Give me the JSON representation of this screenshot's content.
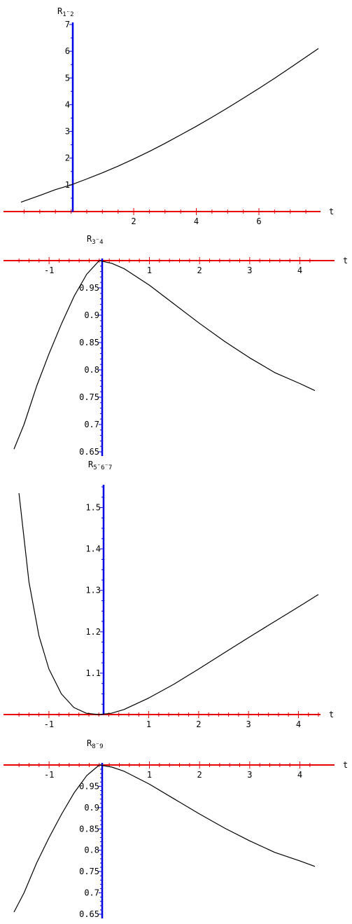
{
  "chart_data": [
    {
      "type": "line",
      "title": "R",
      "title_subscript": "1¨2",
      "xlabel": "t",
      "xlim": [
        -1.6,
        7.9
      ],
      "ylim": [
        0,
        7
      ],
      "x_ticks": [
        2,
        4,
        6
      ],
      "y_ticks": [
        1,
        2,
        3,
        4,
        5,
        6,
        7
      ],
      "x_axis_color": "#e60000",
      "y_axis_color": "#0000e6",
      "series": [
        {
          "x": [
            -1.6,
            -1.0,
            -0.5,
            0,
            0.5,
            1,
            1.5,
            2,
            2.5,
            3,
            3.5,
            4,
            4.5,
            5,
            5.5,
            6,
            6.5,
            7,
            7.5,
            7.9
          ],
          "y": [
            0.35,
            0.6,
            0.82,
            1.0,
            1.22,
            1.45,
            1.7,
            1.97,
            2.25,
            2.55,
            2.87,
            3.19,
            3.53,
            3.88,
            4.24,
            4.61,
            4.99,
            5.38,
            5.78,
            6.1
          ]
        }
      ]
    },
    {
      "type": "line",
      "title": "R",
      "title_subscript": "3¨4",
      "xlabel": "t",
      "xlim": [
        -1.7,
        4.3
      ],
      "ylim": [
        0.65,
        1.0
      ],
      "x_ticks": [
        -1,
        1,
        2,
        3,
        4
      ],
      "y_ticks": [
        0.65,
        0.7,
        0.75,
        0.8,
        0.85,
        0.9,
        0.95
      ],
      "x_axis_color": "#e60000",
      "y_axis_color": "#0000e6",
      "series": [
        {
          "x": [
            -1.7,
            -1.5,
            -1.25,
            -1.0,
            -0.75,
            -0.5,
            -0.25,
            0,
            0.25,
            0.5,
            1,
            1.5,
            2,
            2.5,
            3,
            3.5,
            4,
            4.3
          ],
          "y": [
            0.655,
            0.7,
            0.77,
            0.83,
            0.885,
            0.935,
            0.975,
            1.0,
            0.995,
            0.985,
            0.955,
            0.92,
            0.885,
            0.852,
            0.822,
            0.795,
            0.775,
            0.762
          ]
        }
      ]
    },
    {
      "type": "line",
      "title": "R",
      "title_subscript": "5¨6¨7",
      "xlabel": "t",
      "xlim": [
        -1.7,
        4.4
      ],
      "ylim": [
        1.0,
        1.55
      ],
      "x_ticks": [
        -1,
        1,
        2,
        3,
        4
      ],
      "y_ticks": [
        1.1,
        1.2,
        1.3,
        1.4,
        1.5
      ],
      "x_axis_color": "#e60000",
      "y_axis_color": "#0000e6",
      "series": [
        {
          "x": [
            -1.6,
            -1.4,
            -1.2,
            -1.0,
            -0.75,
            -0.5,
            -0.25,
            0,
            0.25,
            0.5,
            1,
            1.5,
            2,
            2.5,
            3,
            3.5,
            4,
            4.4
          ],
          "y": [
            1.535,
            1.32,
            1.19,
            1.11,
            1.05,
            1.017,
            1.003,
            1.0,
            1.003,
            1.012,
            1.04,
            1.073,
            1.11,
            1.148,
            1.186,
            1.223,
            1.26,
            1.29
          ]
        }
      ]
    },
    {
      "type": "line",
      "title": "R",
      "title_subscript": "8¨9",
      "xlabel": "t",
      "xlim": [
        -1.7,
        4.3
      ],
      "ylim": [
        0.65,
        1.0
      ],
      "x_ticks": [
        -1,
        1,
        2,
        3,
        4
      ],
      "y_ticks": [
        0.65,
        0.7,
        0.75,
        0.8,
        0.85,
        0.9,
        0.95
      ],
      "x_axis_color": "#e60000",
      "y_axis_color": "#0000e6",
      "series": [
        {
          "x": [
            -1.7,
            -1.5,
            -1.25,
            -1.0,
            -0.75,
            -0.5,
            -0.25,
            0,
            0.25,
            0.5,
            1,
            1.5,
            2,
            2.5,
            3,
            3.5,
            4,
            4.3
          ],
          "y": [
            0.655,
            0.7,
            0.77,
            0.83,
            0.885,
            0.935,
            0.975,
            1.0,
            0.995,
            0.985,
            0.955,
            0.92,
            0.885,
            0.852,
            0.822,
            0.795,
            0.775,
            0.762
          ]
        }
      ]
    }
  ]
}
